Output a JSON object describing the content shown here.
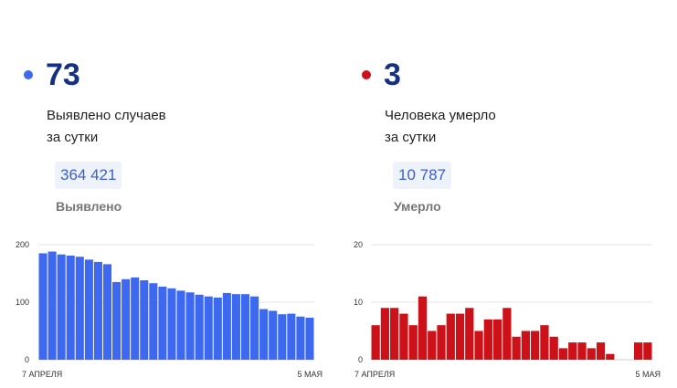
{
  "panels": {
    "cases": {
      "value": "73",
      "label_line1": "Выявлено случаев",
      "label_line2": "за сутки",
      "total": "364 421",
      "total_label": "Выявлено",
      "color": "#3d68f0"
    },
    "deaths": {
      "value": "3",
      "label_line1": "Человека умерло",
      "label_line2": "за сутки",
      "total": "10 787",
      "total_label": "Умерло",
      "color": "#cc1119"
    }
  },
  "chart_data": [
    {
      "type": "bar",
      "x_start_label": "7 АПРЕЛЯ",
      "x_end_label": "5 МАЯ",
      "yticks": [
        "0",
        "100",
        "200"
      ],
      "ylim": [
        0,
        200
      ],
      "grid": true,
      "color": "#3d68f0",
      "values": [
        185,
        188,
        183,
        181,
        179,
        174,
        170,
        166,
        135,
        140,
        143,
        138,
        133,
        127,
        124,
        120,
        117,
        113,
        110,
        108,
        116,
        114,
        114,
        110,
        88,
        85,
        79,
        80,
        75,
        73
      ]
    },
    {
      "type": "bar",
      "x_start_label": "7 АПРЕЛЯ",
      "x_end_label": "5 МАЯ",
      "yticks": [
        "0",
        "10",
        "20"
      ],
      "ylim": [
        0,
        20
      ],
      "grid": true,
      "color": "#cc1119",
      "values": [
        6,
        9,
        9,
        8,
        6,
        11,
        5,
        6,
        8,
        8,
        9,
        5,
        7,
        7,
        9,
        4,
        5,
        5,
        6,
        4,
        2,
        3,
        3,
        2,
        3,
        1,
        0,
        0,
        3,
        3
      ]
    }
  ]
}
